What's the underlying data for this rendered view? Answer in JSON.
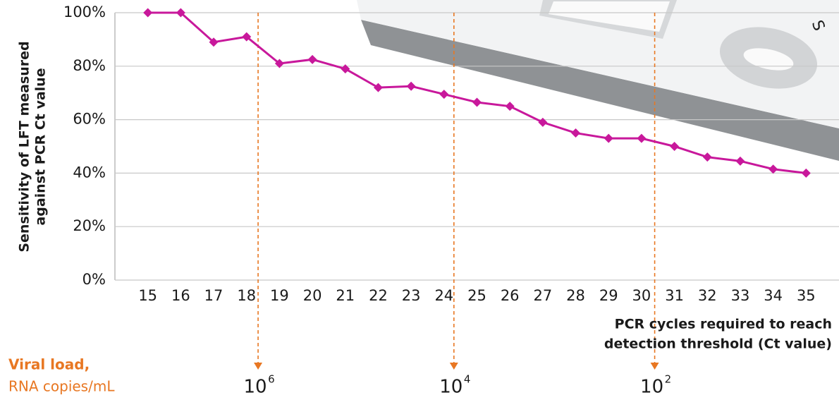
{
  "chart_data": {
    "type": "line",
    "y_label_lines": [
      "Sensitivity of LFT measured",
      "against PCR Ct value"
    ],
    "x_label_lines": [
      "PCR cycles required to reach",
      "detection threshold (Ct value)"
    ],
    "x": [
      15,
      16,
      17,
      18,
      19,
      20,
      21,
      22,
      23,
      24,
      25,
      26,
      27,
      28,
      29,
      30,
      31,
      32,
      33,
      34,
      35
    ],
    "series": [
      {
        "color": "#c8189b",
        "values": [
          100,
          100,
          89,
          91,
          81,
          82.5,
          79,
          72,
          72.5,
          69.5,
          66.5,
          65,
          59,
          55,
          53,
          53,
          50,
          46,
          44.5,
          41.5,
          40
        ]
      }
    ],
    "xlim": [
      14,
      36
    ],
    "xticks": [
      15,
      16,
      17,
      18,
      19,
      20,
      21,
      22,
      23,
      24,
      25,
      26,
      27,
      28,
      29,
      30,
      31,
      32,
      33,
      34,
      35
    ],
    "ylim": [
      0,
      100
    ],
    "yticks": [
      {
        "value": 0,
        "label": "0%"
      },
      {
        "value": 20,
        "label": "20%"
      },
      {
        "value": 40,
        "label": "40%"
      },
      {
        "value": 60,
        "label": "60%"
      },
      {
        "value": 80,
        "label": "80%"
      },
      {
        "value": 100,
        "label": "100%"
      }
    ],
    "grid": true,
    "viral_load": {
      "title": "Viral load,",
      "unit": "RNA copies/mL",
      "color": "#e87722",
      "markers": [
        {
          "x": 18.35,
          "base": "10",
          "exponent": "6"
        },
        {
          "x": 24.3,
          "base": "10",
          "exponent": "4"
        },
        {
          "x": 30.4,
          "base": "10",
          "exponent": "2"
        }
      ]
    },
    "device_label": "S"
  }
}
